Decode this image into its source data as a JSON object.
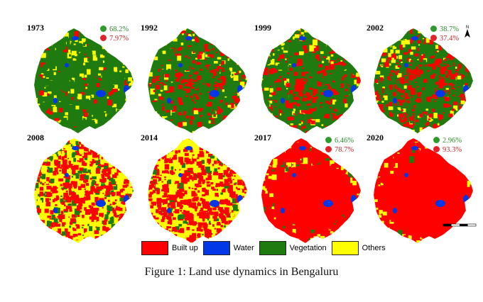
{
  "colors": {
    "built_up": "#ff0000",
    "water": "#0038e8",
    "vegetation": "#1f7a10",
    "others": "#ffff00",
    "veg_text": "#2e8b2e",
    "built_text": "#c0272d"
  },
  "panels": [
    {
      "year": "1973",
      "veg_pct": "68.2%",
      "built_pct": "7.97%",
      "built_share": 0.08,
      "veg_share": 0.68
    },
    {
      "year": "1992",
      "veg_pct": "",
      "built_pct": "",
      "built_share": 0.3,
      "veg_share": 0.48
    },
    {
      "year": "1999",
      "veg_pct": "",
      "built_pct": "",
      "built_share": 0.34,
      "veg_share": 0.46
    },
    {
      "year": "2002",
      "veg_pct": "38.7%",
      "built_pct": "37.4%",
      "built_share": 0.37,
      "veg_share": 0.39
    },
    {
      "year": "2008",
      "veg_pct": "",
      "built_pct": "",
      "built_share": 0.55,
      "veg_share": 0.22
    },
    {
      "year": "2014",
      "veg_pct": "",
      "built_pct": "",
      "built_share": 0.68,
      "veg_share": 0.14
    },
    {
      "year": "2017",
      "veg_pct": "6.46%",
      "built_pct": "78.7%",
      "built_share": 0.79,
      "veg_share": 0.06
    },
    {
      "year": "2020",
      "veg_pct": "2.96%",
      "built_pct": "93.3%",
      "built_share": 0.93,
      "veg_share": 0.03
    }
  ],
  "legend": [
    {
      "label": "Built up",
      "color": "#ff0000"
    },
    {
      "label": "Water",
      "color": "#0038e8"
    },
    {
      "label": "Vegetation",
      "color": "#1f7a10"
    },
    {
      "label": "Others",
      "color": "#ffff00"
    }
  ],
  "north_arrow": "N",
  "caption": "Figure 1: Land use dynamics in Bengaluru"
}
